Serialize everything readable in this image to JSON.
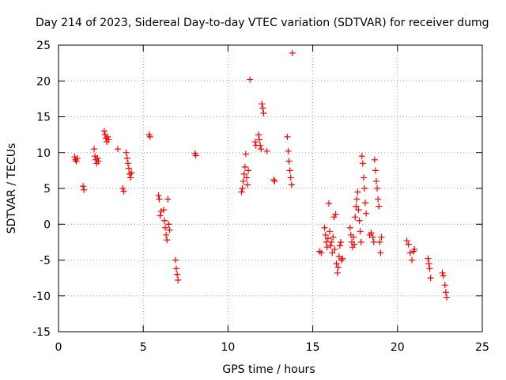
{
  "chart_data": {
    "type": "scatter",
    "title": "Day 214 of 2023, Sidereal Day-to-day VTEC variation (SDTVAR) for receiver dumg",
    "xlabel": "GPS time / hours",
    "ylabel": "SDTVAR / TECUs",
    "xlim": [
      0,
      25
    ],
    "ylim": [
      -15,
      25
    ],
    "xticks": [
      "0",
      "5",
      "10",
      "15",
      "20",
      "25"
    ],
    "yticks": [
      "25",
      "20",
      "15",
      "10",
      "5",
      "0",
      "-5",
      "-10",
      "-15"
    ],
    "grid": true,
    "marker": "+",
    "marker_color": "#ff0000",
    "series": [
      {
        "name": "SDTVAR",
        "points": [
          [
            0.95,
            9.4
          ],
          [
            1.0,
            9.0
          ],
          [
            1.05,
            8.8
          ],
          [
            1.1,
            9.2
          ],
          [
            1.45,
            5.3
          ],
          [
            1.5,
            4.8
          ],
          [
            2.1,
            10.5
          ],
          [
            2.15,
            9.5
          ],
          [
            2.2,
            9.0
          ],
          [
            2.25,
            8.5
          ],
          [
            2.3,
            9.2
          ],
          [
            2.35,
            8.8
          ],
          [
            2.7,
            13.0
          ],
          [
            2.75,
            12.5
          ],
          [
            2.8,
            12.0
          ],
          [
            2.85,
            11.5
          ],
          [
            2.9,
            12.2
          ],
          [
            2.95,
            11.8
          ],
          [
            3.5,
            10.5
          ],
          [
            3.8,
            5.0
          ],
          [
            3.85,
            4.6
          ],
          [
            4.0,
            10.0
          ],
          [
            4.05,
            9.2
          ],
          [
            4.1,
            8.5
          ],
          [
            4.15,
            7.8
          ],
          [
            4.2,
            7.0
          ],
          [
            4.25,
            6.5
          ],
          [
            4.3,
            7.2
          ],
          [
            5.35,
            12.5
          ],
          [
            5.4,
            12.2
          ],
          [
            5.9,
            4.0
          ],
          [
            5.95,
            3.5
          ],
          [
            6.0,
            1.2
          ],
          [
            6.05,
            1.8
          ],
          [
            6.2,
            2.0
          ],
          [
            6.25,
            0.5
          ],
          [
            6.3,
            -0.5
          ],
          [
            6.35,
            -1.5
          ],
          [
            6.4,
            -2.2
          ],
          [
            6.45,
            3.5
          ],
          [
            6.5,
            0.0
          ],
          [
            6.55,
            -0.8
          ],
          [
            6.9,
            -5.0
          ],
          [
            6.95,
            -6.2
          ],
          [
            7.0,
            -7.0
          ],
          [
            7.05,
            -7.8
          ],
          [
            8.05,
            9.9
          ],
          [
            8.1,
            9.6
          ],
          [
            10.8,
            4.5
          ],
          [
            10.85,
            5.0
          ],
          [
            10.9,
            6.0
          ],
          [
            10.95,
            7.0
          ],
          [
            11.0,
            8.0
          ],
          [
            11.05,
            9.8
          ],
          [
            11.1,
            6.5
          ],
          [
            11.15,
            5.5
          ],
          [
            11.2,
            7.5
          ],
          [
            11.3,
            20.2
          ],
          [
            11.6,
            11.5
          ],
          [
            11.65,
            11.0
          ],
          [
            11.8,
            12.5
          ],
          [
            11.85,
            11.8
          ],
          [
            11.9,
            11.0
          ],
          [
            11.95,
            10.5
          ],
          [
            12.0,
            16.8
          ],
          [
            12.05,
            16.2
          ],
          [
            12.1,
            15.5
          ],
          [
            12.3,
            10.2
          ],
          [
            12.7,
            6.2
          ],
          [
            12.75,
            6.0
          ],
          [
            13.5,
            12.2
          ],
          [
            13.55,
            10.2
          ],
          [
            13.6,
            8.8
          ],
          [
            13.65,
            7.5
          ],
          [
            13.7,
            6.5
          ],
          [
            13.75,
            5.5
          ],
          [
            13.8,
            23.9
          ],
          [
            15.4,
            -3.8
          ],
          [
            15.5,
            -4.0
          ],
          [
            15.7,
            -0.5
          ],
          [
            15.75,
            -1.5
          ],
          [
            15.8,
            -2.5
          ],
          [
            15.85,
            -3.2
          ],
          [
            15.9,
            -2.0
          ],
          [
            15.95,
            2.9
          ],
          [
            16.0,
            -1.0
          ],
          [
            16.05,
            -3.0
          ],
          [
            16.1,
            -2.5
          ],
          [
            16.15,
            -4.0
          ],
          [
            16.2,
            -1.8
          ],
          [
            16.25,
            1.0
          ],
          [
            16.3,
            -3.5
          ],
          [
            16.35,
            1.4
          ],
          [
            16.4,
            -5.5
          ],
          [
            16.45,
            -6.8
          ],
          [
            16.5,
            -6.0
          ],
          [
            16.55,
            -4.5
          ],
          [
            16.6,
            -3.0
          ],
          [
            16.65,
            -2.5
          ],
          [
            16.7,
            -5.0
          ],
          [
            16.75,
            -4.8
          ],
          [
            17.2,
            -0.5
          ],
          [
            17.25,
            -1.5
          ],
          [
            17.3,
            -2.5
          ],
          [
            17.35,
            -3.2
          ],
          [
            17.4,
            -1.8
          ],
          [
            17.45,
            -2.8
          ],
          [
            17.5,
            1.0
          ],
          [
            17.55,
            2.5
          ],
          [
            17.6,
            3.5
          ],
          [
            17.65,
            4.5
          ],
          [
            17.7,
            2.0
          ],
          [
            17.75,
            0.5
          ],
          [
            17.8,
            -1.0
          ],
          [
            17.85,
            -2.5
          ],
          [
            17.9,
            9.5
          ],
          [
            17.95,
            8.5
          ],
          [
            18.0,
            6.5
          ],
          [
            18.05,
            5.0
          ],
          [
            18.1,
            3.0
          ],
          [
            18.15,
            1.5
          ],
          [
            18.35,
            -1.5
          ],
          [
            18.45,
            -1.2
          ],
          [
            18.55,
            -1.8
          ],
          [
            18.6,
            -2.5
          ],
          [
            18.65,
            9.0
          ],
          [
            18.7,
            7.5
          ],
          [
            18.75,
            6.0
          ],
          [
            18.8,
            5.0
          ],
          [
            18.85,
            3.5
          ],
          [
            18.9,
            2.5
          ],
          [
            18.95,
            -2.5
          ],
          [
            19.0,
            -4.0
          ],
          [
            19.05,
            -1.8
          ],
          [
            20.55,
            -2.3
          ],
          [
            20.65,
            -2.8
          ],
          [
            20.75,
            -4.0
          ],
          [
            20.85,
            -5.0
          ],
          [
            20.95,
            -3.8
          ],
          [
            21.0,
            -3.5
          ],
          [
            21.8,
            -4.8
          ],
          [
            21.85,
            -5.5
          ],
          [
            21.9,
            -6.2
          ],
          [
            21.95,
            -7.5
          ],
          [
            22.65,
            -6.8
          ],
          [
            22.7,
            -7.2
          ],
          [
            22.8,
            -8.5
          ],
          [
            22.85,
            -9.5
          ],
          [
            22.9,
            -10.2
          ]
        ]
      }
    ]
  }
}
